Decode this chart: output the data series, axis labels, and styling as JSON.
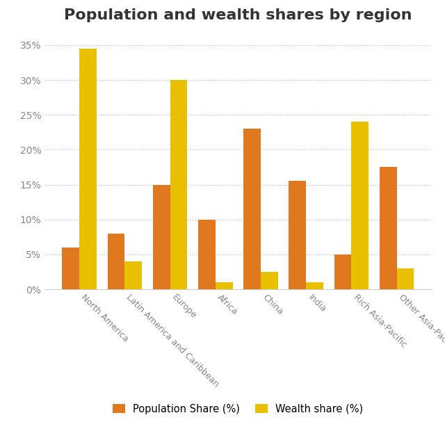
{
  "title": "Population and wealth shares by region",
  "categories": [
    "North America",
    "Latin America and Caribbean",
    "Europe",
    "Africa",
    "China",
    "India",
    "Rich Asia-Pacific",
    "Other Asia-Pacific"
  ],
  "population_share": [
    6,
    8,
    15,
    10,
    23,
    15.5,
    5,
    17.5
  ],
  "wealth_share": [
    34.5,
    4,
    30,
    1,
    2.5,
    1,
    24,
    3
  ],
  "pop_color": "#E07820",
  "wealth_color": "#E8C000",
  "background_color": "#FFFFFF",
  "ylabel_ticks": [
    0,
    5,
    10,
    15,
    20,
    25,
    30,
    35
  ],
  "ylim": [
    0,
    37
  ],
  "title_fontsize": 16,
  "tick_fontsize": 10,
  "xlabel_fontsize": 9,
  "legend_labels": [
    "Population Share (%)",
    "Wealth share (%)"
  ],
  "bar_width": 0.38
}
